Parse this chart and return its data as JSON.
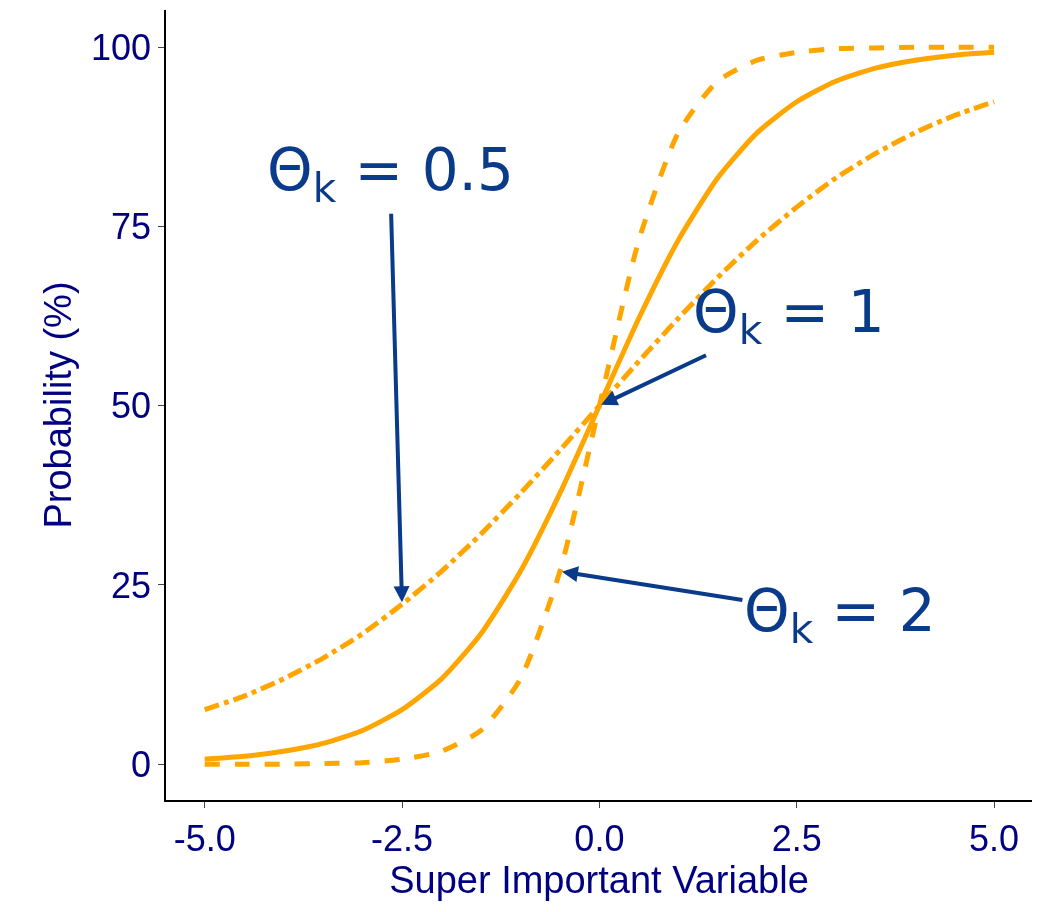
{
  "chart_data": {
    "type": "line",
    "xlabel": "Super Important Variable",
    "ylabel": "Probability (%)",
    "x": [
      -5,
      -4.5,
      -4,
      -3.5,
      -3,
      -2.5,
      -2,
      -1.5,
      -1,
      -0.5,
      0,
      0.5,
      1,
      1.5,
      2,
      2.5,
      3,
      3.5,
      4,
      4.5,
      5
    ],
    "series": [
      {
        "color": "#ffa500",
        "line_style": "dashed",
        "values": [
          0,
          0,
          0,
          0.1,
          0.2,
          0.7,
          1.8,
          4.7,
          11.9,
          26.9,
          50,
          73.1,
          88.1,
          95.3,
          98.2,
          99.3,
          99.8,
          99.9,
          100,
          100,
          100
        ]
      },
      {
        "color": "#ffa500",
        "line_style": "solid",
        "values": [
          0.7,
          1.1,
          1.8,
          2.9,
          4.7,
          7.6,
          11.9,
          18.2,
          26.9,
          37.8,
          50,
          62.2,
          73.1,
          81.8,
          88.1,
          92.4,
          95.3,
          97.1,
          98.2,
          98.9,
          99.3
        ]
      },
      {
        "color": "#ffa500",
        "line_style": "dashdot",
        "values": [
          7.6,
          9.5,
          11.9,
          14.8,
          18.2,
          22.3,
          26.9,
          32.1,
          37.8,
          43.8,
          50,
          56.2,
          62.2,
          67.9,
          73.1,
          77.7,
          81.8,
          85.2,
          88.1,
          90.5,
          92.4
        ]
      }
    ],
    "xlim": [
      -5.49,
      5.48
    ],
    "ylim": [
      -5,
      105.2
    ],
    "xticks": [
      {
        "value": -5,
        "label": "-5.0"
      },
      {
        "value": -2.5,
        "label": "-2.5"
      },
      {
        "value": 0,
        "label": "0.0"
      },
      {
        "value": 2.5,
        "label": "2.5"
      },
      {
        "value": 5,
        "label": "5.0"
      }
    ],
    "yticks": [
      0,
      25,
      50,
      75,
      100
    ],
    "annotations": [
      {
        "text": "Θ$_{k}$ = 0.5",
        "x": -2.5,
        "y": 22.3
      },
      {
        "text": "Θ$_{k}$ = 1",
        "x": 0,
        "y": 50
      },
      {
        "text": "Θ$_{k}$ = 2",
        "x": -0.5,
        "y": 26.9
      }
    ]
  }
}
